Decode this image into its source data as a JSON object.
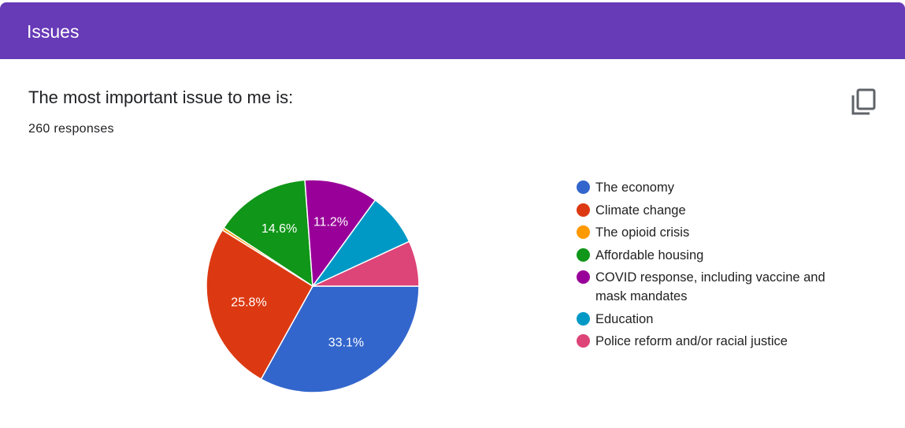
{
  "header": {
    "title": "Issues"
  },
  "chart_data": {
    "type": "pie",
    "title": "The most important issue to me is:",
    "subtitle": "260 responses",
    "categories": [
      "The economy",
      "Climate change",
      "The opioid crisis",
      "Affordable housing",
      "COVID response, including vaccine and mask mandates",
      "Education",
      "Police reform and/or racial justice"
    ],
    "values": [
      33.1,
      25.8,
      0.4,
      14.6,
      11.2,
      8.1,
      6.9
    ],
    "value_labels": [
      "33.1%",
      "25.8%",
      null,
      "14.6%",
      "11.2%",
      null,
      null
    ],
    "colors": [
      "#3366cc",
      "#dc3912",
      "#ff9900",
      "#109618",
      "#990099",
      "#0099c6",
      "#dd4477"
    ],
    "legend": "right"
  }
}
